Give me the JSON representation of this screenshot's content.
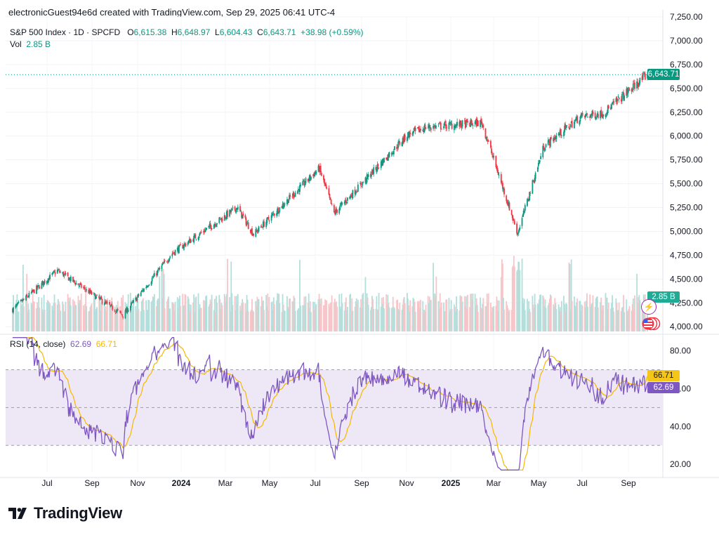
{
  "header": {
    "attribution": "electronicGuest94e6d created with TradingView.com, Sep 29, 2025 06:41 UTC-4"
  },
  "legend": {
    "symbol": "S&P 500 Index · 1D · SPCFD",
    "o_label": "O",
    "o": "6,615.38",
    "h_label": "H",
    "h": "6,648.97",
    "l_label": "L",
    "l": "6,604.43",
    "c_label": "C",
    "c": "6,643.71",
    "change": "+38.98 (+0.59%)",
    "vol_label": "Vol",
    "vol": "2.85 B"
  },
  "rsi_legend": {
    "label": "RSI (14, close)",
    "rsi": "62.69",
    "ma": "66.71"
  },
  "badges": {
    "price": "6,643.71",
    "volume": "2.85 B",
    "rsi_ma": "66.71",
    "rsi": "62.69"
  },
  "logo": {
    "text": "TradingView"
  },
  "colors": {
    "up": "#089981",
    "down": "#f23645",
    "rsi": "#7e57c2",
    "rsi_ma": "#f5b800",
    "rsi_band": "#ede7f6",
    "volume_up": "#b2dfdb",
    "volume_down": "#f8c5c9"
  },
  "chart_data": [
    {
      "type": "candlestick",
      "title": "S&P 500 Index · 1D · SPCFD",
      "y_ticks": [
        "7,250.00",
        "7,000.00",
        "6,750.00",
        "6,500.00",
        "6,250.00",
        "6,000.00",
        "5,750.00",
        "5,500.00",
        "5,250.00",
        "5,000.00",
        "4,750.00",
        "4,500.00",
        "4,250.00",
        "4,000.00"
      ],
      "ylim": [
        3950,
        7250
      ],
      "x_ticks": [
        "Jul",
        "Sep",
        "Nov",
        "2024",
        "Mar",
        "May",
        "Jul",
        "Sep",
        "Nov",
        "2025",
        "Mar",
        "May",
        "Jul",
        "Sep"
      ],
      "x": [
        "2023-06-01",
        "2023-07-31",
        "2023-10-27",
        "2024-01-01",
        "2024-03-28",
        "2024-04-19",
        "2024-07-16",
        "2024-08-05",
        "2024-11-11",
        "2024-12-06",
        "2025-02-19",
        "2025-04-08",
        "2025-05-13",
        "2025-07-01",
        "2025-08-01",
        "2025-09-29"
      ],
      "close": [
        4180,
        4590,
        4120,
        4770,
        5250,
        4970,
        5660,
        5190,
        6010,
        6090,
        6140,
        4980,
        5890,
        6200,
        6240,
        6643.71
      ],
      "last_close": 6643.71,
      "volume_series": {
        "name": "Vol",
        "last_value": "2.85 B"
      }
    },
    {
      "type": "line",
      "title": "RSI (14, close)",
      "y_ticks": [
        "80.00",
        "60.00",
        "40.00",
        "20.00"
      ],
      "ylim": [
        16,
        88
      ],
      "bands": [
        30,
        70
      ],
      "series": [
        {
          "name": "RSI",
          "last_value": 62.69
        },
        {
          "name": "RSI-based MA",
          "last_value": 66.71
        }
      ]
    }
  ]
}
